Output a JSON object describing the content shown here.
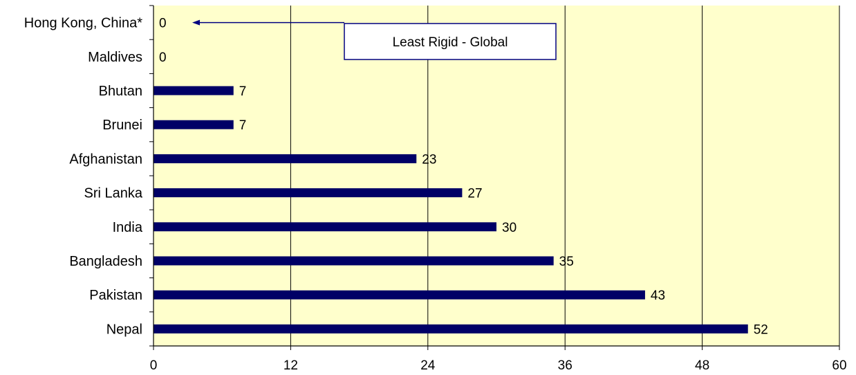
{
  "chart_data": {
    "type": "bar",
    "orientation": "horizontal",
    "title": "",
    "xlabel": "",
    "ylabel": "",
    "categories": [
      "Hong Kong, China*",
      "Maldives",
      "Bhutan",
      "Brunei",
      "Afghanistan",
      "Sri Lanka",
      "India",
      "Bangladesh",
      "Pakistan",
      "Nepal"
    ],
    "values": [
      0,
      0,
      7,
      7,
      23,
      27,
      30,
      35,
      43,
      52
    ],
    "value_labels": [
      "0",
      "0",
      "7",
      "7",
      "23",
      "27",
      "30",
      "35",
      "43",
      "52"
    ],
    "xlim": [
      0,
      60
    ],
    "xticks": [
      0,
      12,
      24,
      36,
      48,
      60
    ],
    "xtick_labels": [
      "0",
      "12",
      "24",
      "36",
      "48",
      "60"
    ],
    "grid": "vertical",
    "legend": "none",
    "annotation": {
      "text": "Least Rigid - Global",
      "points_to": "Hong Kong, China*"
    },
    "colors": {
      "bar": "#000066",
      "plot_background": "#FFFFCC",
      "gridline": "#000000",
      "annotation_border": "#000080",
      "annotation_arrow": "#000080"
    }
  }
}
